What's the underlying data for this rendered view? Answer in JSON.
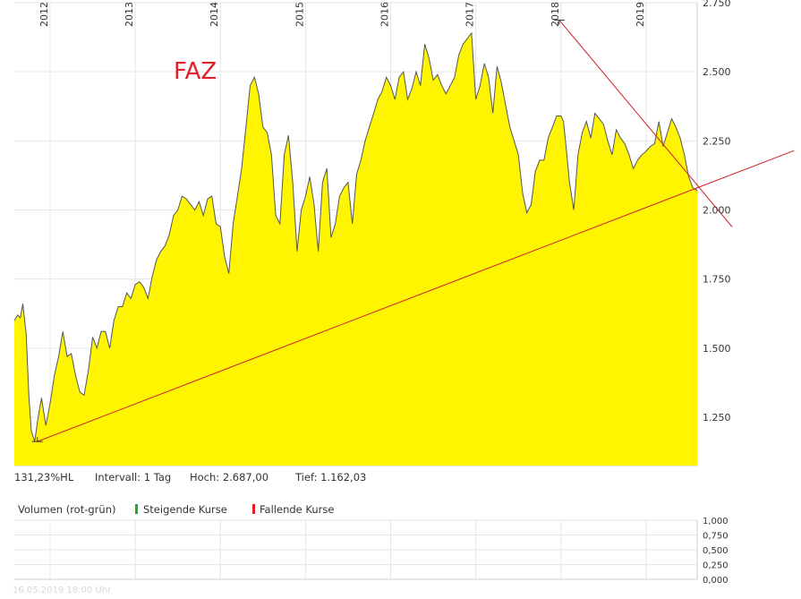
{
  "chart_data": {
    "type": "area",
    "title": "FAZ",
    "x_ticks": [
      "2012",
      "2013",
      "2014",
      "2015",
      "2016",
      "2017",
      "2018",
      "2019"
    ],
    "y_ticks": [
      "1.250",
      "1.500",
      "1.750",
      "2.000",
      "2.250",
      "2.500",
      "2.750"
    ],
    "ylim": [
      1075,
      2750
    ],
    "xlim": [
      2011.58,
      2019.6
    ],
    "fill_color": "#fff500",
    "line_color": "#555555",
    "trendline_color": "#d0202a",
    "series": [
      {
        "x": [
          2011.58,
          2011.62,
          2011.65,
          2011.68,
          2011.72,
          2011.75,
          2011.78,
          2011.82,
          2011.86,
          2011.9,
          2011.95,
          2012.0,
          2012.05,
          2012.1,
          2012.15,
          2012.2,
          2012.25,
          2012.3,
          2012.35,
          2012.4,
          2012.45,
          2012.5,
          2012.55,
          2012.6,
          2012.65,
          2012.7,
          2012.75,
          2012.8,
          2012.85,
          2012.9,
          2012.95,
          2013.0,
          2013.05,
          2013.1,
          2013.15,
          2013.2,
          2013.25,
          2013.3,
          2013.35,
          2013.4,
          2013.45,
          2013.5,
          2013.55,
          2013.6,
          2013.65,
          2013.7,
          2013.75,
          2013.8,
          2013.85,
          2013.9,
          2013.95,
          2014.0,
          2014.05,
          2014.1,
          2014.15,
          2014.2,
          2014.25,
          2014.3,
          2014.35,
          2014.4,
          2014.45,
          2014.5,
          2014.55,
          2014.6,
          2014.65,
          2014.7,
          2014.75,
          2014.8,
          2014.85,
          2014.9,
          2014.95,
          2015.0,
          2015.05,
          2015.1,
          2015.15,
          2015.2,
          2015.25,
          2015.3,
          2015.35,
          2015.4,
          2015.45,
          2015.5,
          2015.55,
          2015.6,
          2015.65,
          2015.7,
          2015.75,
          2015.8,
          2015.85,
          2015.9,
          2015.95,
          2016.0,
          2016.05,
          2016.1,
          2016.15,
          2016.2,
          2016.25,
          2016.3,
          2016.35,
          2016.4,
          2016.45,
          2016.5,
          2016.55,
          2016.6,
          2016.65,
          2016.7,
          2016.75,
          2016.8,
          2016.85,
          2016.9,
          2016.95,
          2017.0,
          2017.05,
          2017.1,
          2017.15,
          2017.2,
          2017.25,
          2017.3,
          2017.35,
          2017.4,
          2017.45,
          2017.5,
          2017.55,
          2017.6,
          2017.65,
          2017.7,
          2017.75,
          2017.8,
          2017.85,
          2017.9,
          2017.95,
          2018.0,
          2018.03,
          2018.06,
          2018.1,
          2018.15,
          2018.2,
          2018.25,
          2018.3,
          2018.35,
          2018.4,
          2018.45,
          2018.5,
          2018.55,
          2018.6,
          2018.65,
          2018.7,
          2018.75,
          2018.8,
          2018.85,
          2018.9,
          2018.95,
          2018.99,
          2019.05,
          2019.1,
          2019.15,
          2019.2,
          2019.25,
          2019.3,
          2019.35,
          2019.4,
          2019.45,
          2019.5,
          2019.55,
          2019.6
        ],
        "values": [
          1600,
          1620,
          1610,
          1660,
          1550,
          1330,
          1200,
          1162,
          1250,
          1320,
          1220,
          1300,
          1400,
          1470,
          1560,
          1470,
          1480,
          1400,
          1340,
          1330,
          1420,
          1540,
          1500,
          1560,
          1560,
          1500,
          1600,
          1650,
          1650,
          1700,
          1680,
          1730,
          1740,
          1720,
          1680,
          1760,
          1820,
          1850,
          1870,
          1910,
          1980,
          2000,
          2050,
          2040,
          2020,
          2000,
          2030,
          1980,
          2040,
          2050,
          1950,
          1940,
          1830,
          1770,
          1950,
          2050,
          2150,
          2300,
          2450,
          2480,
          2420,
          2300,
          2280,
          2200,
          1980,
          1950,
          2200,
          2270,
          2100,
          1850,
          2000,
          2050,
          2120,
          2020,
          1850,
          2100,
          2150,
          1900,
          1950,
          2050,
          2080,
          2100,
          1950,
          2130,
          2180,
          2250,
          2300,
          2350,
          2400,
          2430,
          2480,
          2450,
          2400,
          2480,
          2500,
          2400,
          2440,
          2500,
          2450,
          2600,
          2550,
          2470,
          2490,
          2450,
          2420,
          2450,
          2480,
          2560,
          2600,
          2620,
          2640,
          2400,
          2450,
          2530,
          2480,
          2350,
          2520,
          2460,
          2380,
          2300,
          2250,
          2200,
          2060,
          1990,
          2020,
          2140,
          2180,
          2180,
          2260,
          2300,
          2340,
          2340,
          2320,
          2230,
          2100,
          2000,
          2200,
          2280,
          2320,
          2260,
          2350,
          2330,
          2310,
          2250,
          2200,
          2290,
          2260,
          2240,
          2200,
          2150,
          2180,
          2200,
          2210,
          2230,
          2240,
          2320,
          2230,
          2280,
          2330,
          2300,
          2260,
          2200,
          2120,
          2080,
          2070
        ]
      }
    ],
    "trendlines": [
      {
        "x": [
          2011.85,
          2019.6
        ],
        "values": [
          1162,
          2080
        ]
      },
      {
        "x": [
          2017.98,
          2019.6
        ],
        "values": [
          2687,
          2090
        ]
      }
    ]
  },
  "stats": {
    "hl": "131,23%HL",
    "interval": "Intervall: 1 Tag",
    "high": "Hoch:  2.687,00",
    "low": "Tief:  1.162,03"
  },
  "volume": {
    "title": "Volumen (rot-grün)",
    "legend_up": "Steigende Kurse",
    "legend_down": "Fallende Kurse",
    "up_color": "#22aa22",
    "down_color": "#e0202a",
    "y_ticks": [
      "0,000",
      "0,250",
      "0,500",
      "0,750",
      "1,000"
    ]
  },
  "timestamp": "16.05.2019 18:00 Uhr"
}
